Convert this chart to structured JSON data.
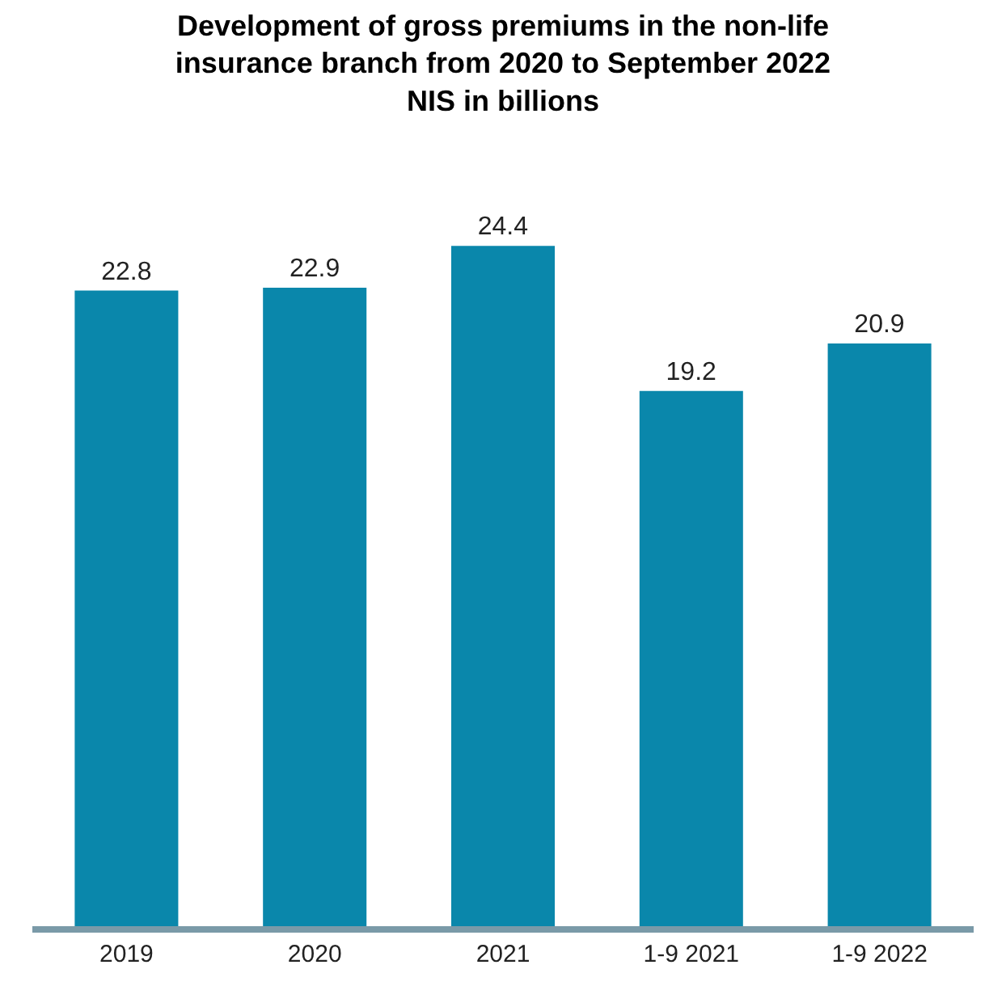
{
  "chart_data": {
    "type": "bar",
    "title": "Development of gross premiums in the non-life\ninsurance branch from 2020 to September 2022\nNIS in billions",
    "categories": [
      "2019",
      "2020",
      "2021",
      "1-9 2021",
      "1-9 2022"
    ],
    "values": [
      22.8,
      22.9,
      24.4,
      19.2,
      20.9
    ],
    "color": "#0a87ab",
    "data_labels": true
  }
}
